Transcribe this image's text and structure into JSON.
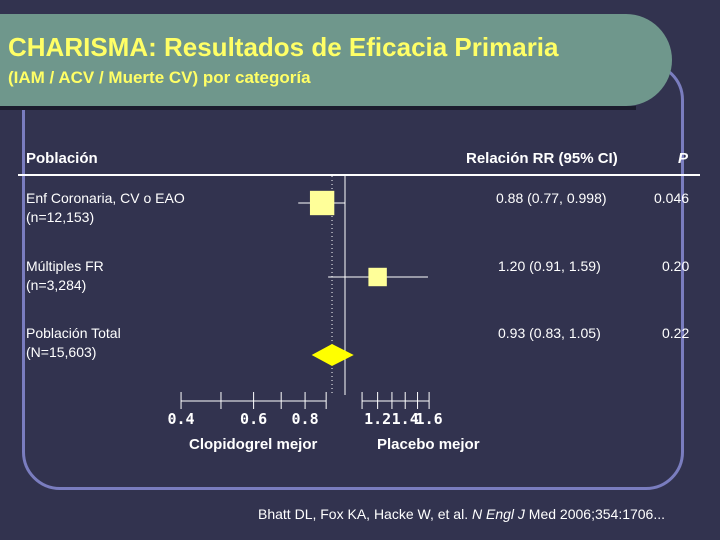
{
  "title": "CHARISMA: Resultados de Eficacia Primaria",
  "subtitle": "(IAM / ACV / Muerte CV) por categoría",
  "header": {
    "population": "Población",
    "rr": "Relación RR (95% CI)",
    "p": "P"
  },
  "rows": [
    {
      "label": "Enf Coronaria, CV o EAO",
      "n": "(n=12,153)",
      "ci_text": "0.88 (0.77, 0.998)",
      "p": "0.046"
    },
    {
      "label": "Múltiples FR",
      "n": "(n=3,284)",
      "ci_text": "1.20 (0.91, 1.59)",
      "p": "0.20"
    },
    {
      "label": "Población Total",
      "n": "(N=15,603)",
      "ci_text": "0.93 (0.83, 1.05)",
      "p": "0.22"
    }
  ],
  "axis": {
    "left_label": "Clopidogrel mejor",
    "right_label": "Placebo mejor"
  },
  "citation": {
    "text": "Bhatt DL, Fox KA, Hacke W, et al. ",
    "journal": "N Engl J",
    "rest": " Med 2006;354:1706..."
  },
  "colors": {
    "marker": "#ffff99",
    "diamond": "#ffff00",
    "title": "#ffff66",
    "title_bar": "#6f978c",
    "background": "#32334f",
    "frame": "#7a7dbf"
  },
  "chart_data": {
    "type": "forest",
    "x_scale": "log",
    "reference_line": 1.0,
    "x_ticks": [
      "0.4",
      "0.6",
      "0.8",
      "1.2",
      "1.4",
      "1.6"
    ],
    "series": [
      {
        "name": "Enf Coronaria, CV o EAO",
        "estimate": 0.88,
        "lower": 0.77,
        "upper": 0.998,
        "weight": 12153,
        "shape": "square"
      },
      {
        "name": "Múltiples FR",
        "estimate": 1.2,
        "lower": 0.91,
        "upper": 1.59,
        "weight": 3284,
        "shape": "square"
      },
      {
        "name": "Población Total",
        "estimate": 0.93,
        "lower": 0.83,
        "upper": 1.05,
        "weight": 15603,
        "shape": "diamond"
      }
    ]
  }
}
